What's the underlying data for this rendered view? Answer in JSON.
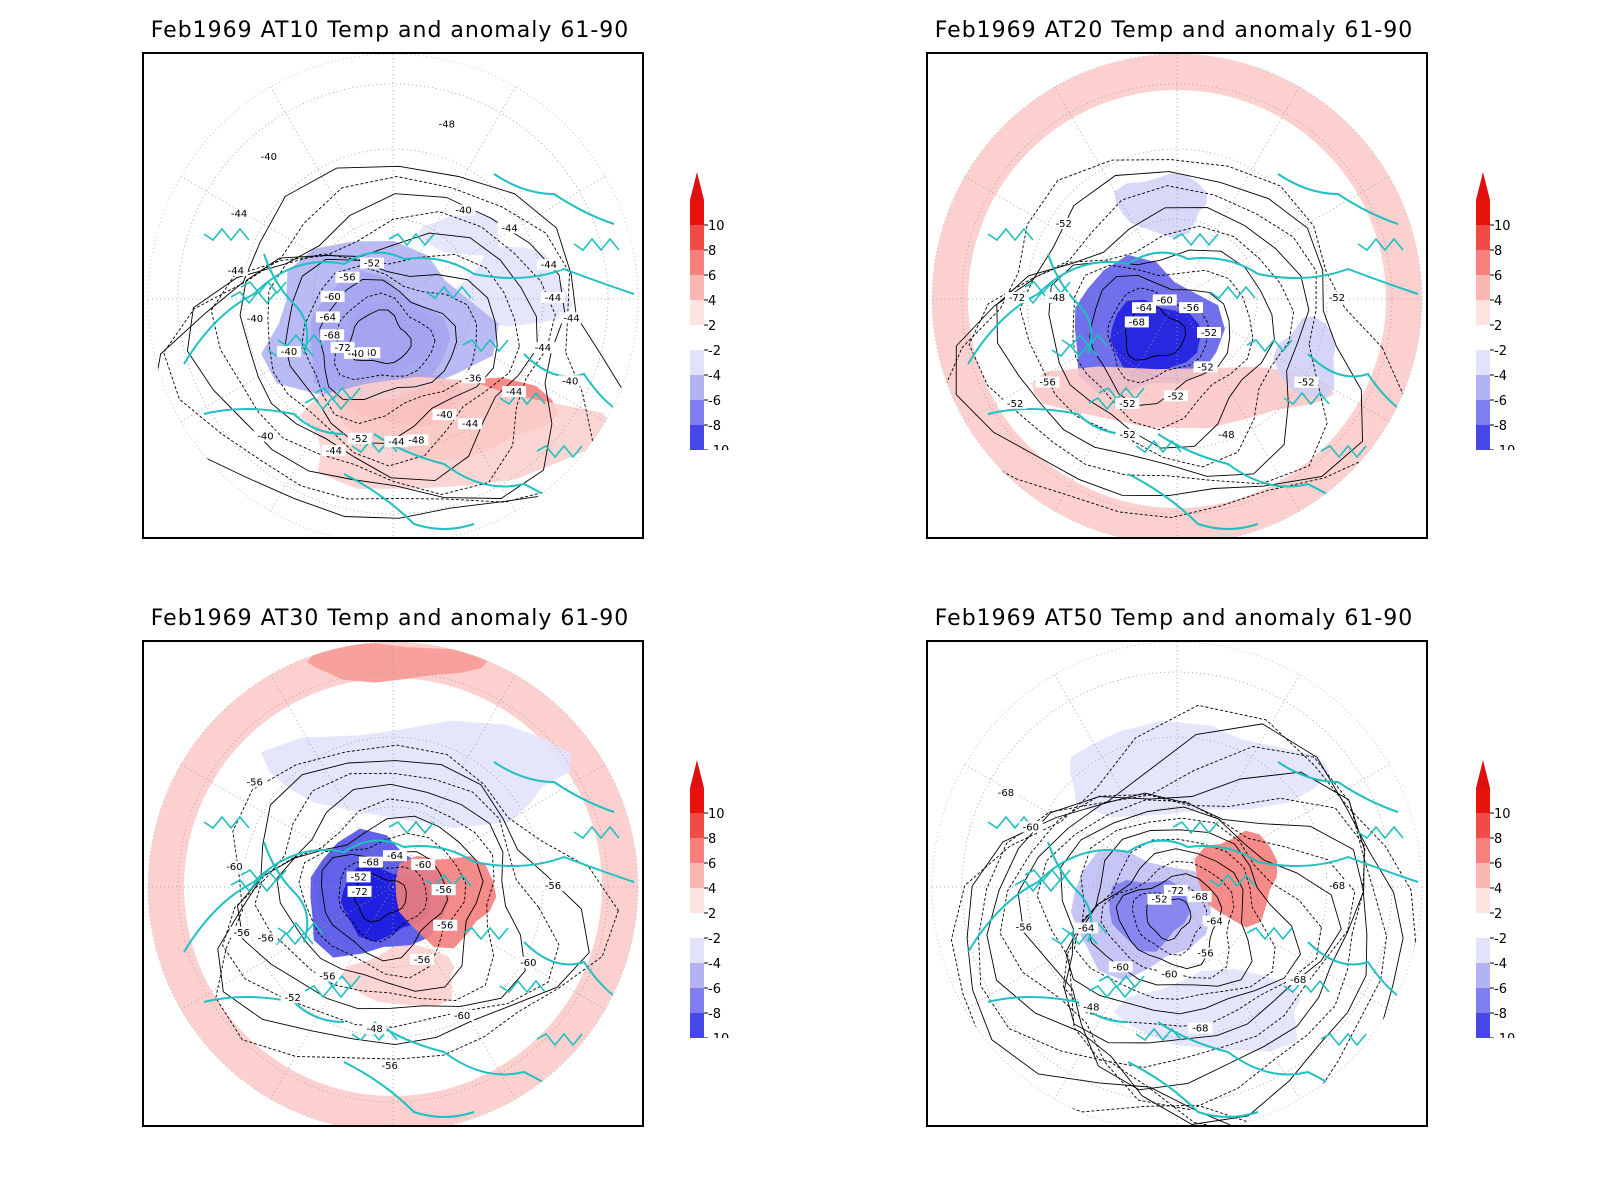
{
  "panels": [
    {
      "title": "Feb1969 AT10 Temp and anomaly 61-90",
      "contour_labels": [
        "-44",
        "-44",
        "-44",
        "-44",
        "-48",
        "-52",
        "-40",
        "-40",
        "-72",
        "-68",
        "-64",
        "-60",
        "-56",
        "-52",
        "-48",
        "-40",
        "-44",
        "-44",
        "-44",
        "-40",
        "-36",
        "-40",
        "-44",
        "-44",
        "-40",
        "-40",
        "-40",
        "-44",
        "-44",
        "-40"
      ]
    },
    {
      "title": "Feb1969 AT20 Temp and anomaly 61-90",
      "contour_labels": [
        "-52",
        "-52",
        "-48",
        "-52",
        "-56",
        "-72",
        "-68",
        "-64",
        "-60",
        "-56",
        "-52",
        "-52",
        "-52",
        "-52",
        "-52",
        "-48",
        "-52"
      ]
    },
    {
      "title": "Feb1969 AT30 Temp and anomaly 61-90",
      "contour_labels": [
        "-56",
        "-60",
        "-60",
        "-48",
        "-52",
        "-56",
        "-72",
        "-52",
        "-68",
        "-64",
        "-60",
        "-56",
        "-56",
        "-56",
        "-56",
        "-56",
        "-56",
        "-60",
        "-56"
      ]
    },
    {
      "title": "Feb1969 AT50 Temp and anomaly 61-90",
      "contour_labels": [
        "-68",
        "-68",
        "-68",
        "-48",
        "-56",
        "-60",
        "-52",
        "-72",
        "-68",
        "-64",
        "-56",
        "-60",
        "-60",
        "-64",
        "-68"
      ]
    }
  ],
  "colorbar": {
    "ticks": [
      "10",
      "8",
      "6",
      "4",
      "2",
      "-2",
      "-4",
      "-6",
      "-8",
      "-10"
    ],
    "colors": [
      "#e8120c",
      "#f24b47",
      "#f7807c",
      "#fbb5b2",
      "#fde4e2",
      "#ffffff",
      "#e2e2fb",
      "#b3b3f3",
      "#7e7eee",
      "#4747e6",
      "#1414e0"
    ],
    "arrow_top_color": "#e01010",
    "arrow_bottom_color": "#1010e0"
  },
  "map_colors": {
    "coast": "#20c0c0",
    "contour": "#000000",
    "grid": "#999999"
  }
}
